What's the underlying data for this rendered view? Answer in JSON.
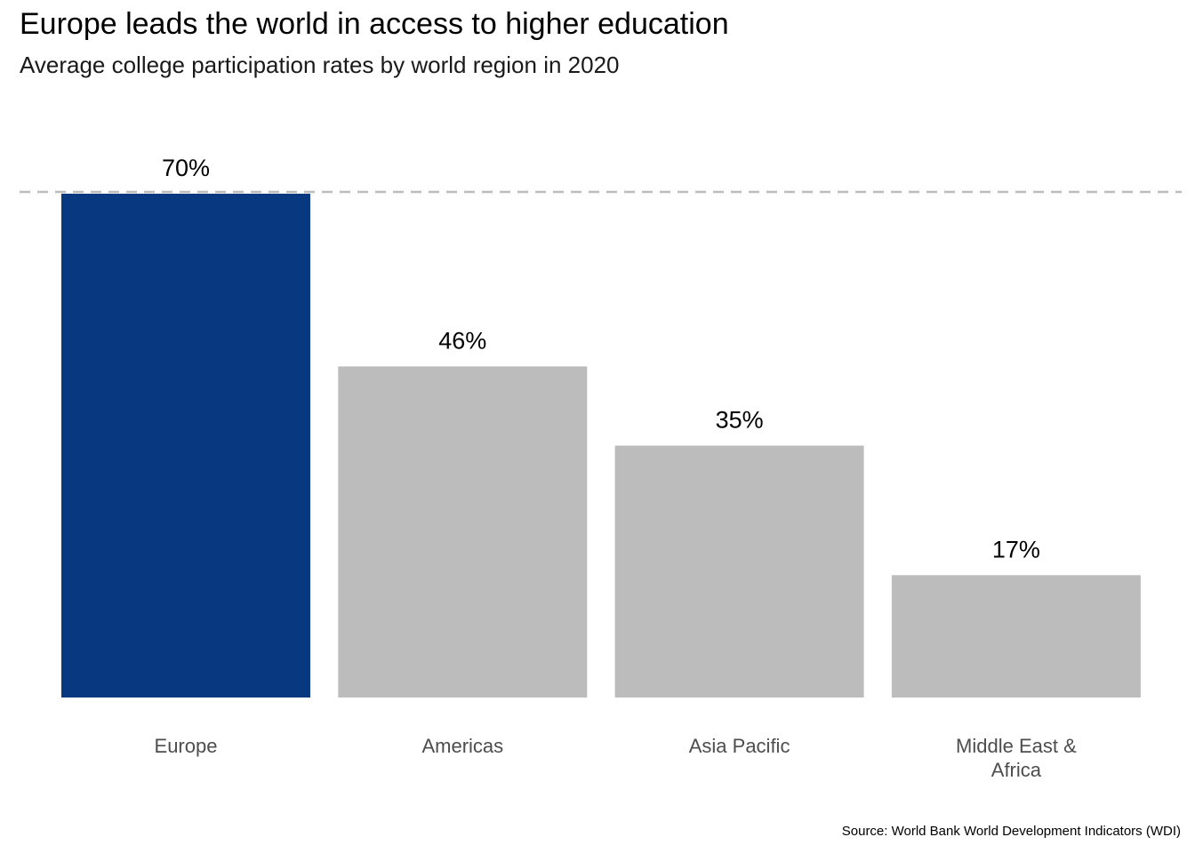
{
  "chart_data": {
    "type": "bar",
    "title": "Europe leads the world in access to higher education",
    "subtitle": "Average college participation rates by world region in 2020",
    "categories": [
      [
        "Europe"
      ],
      [
        "Americas"
      ],
      [
        "Asia Pacific"
      ],
      [
        "Middle East &",
        "Africa"
      ]
    ],
    "values": [
      70,
      46,
      35,
      17
    ],
    "value_labels": [
      "70%",
      "46%",
      "35%",
      "17%"
    ],
    "ylim": [
      0,
      70
    ],
    "reference_line": 70,
    "grid": false,
    "highlight_color": "#08387F",
    "base_color": "#BCBCBC",
    "reference_line_color": "#BCBCBC",
    "source": "Source: World Bank World Development Indicators (WDI)"
  }
}
